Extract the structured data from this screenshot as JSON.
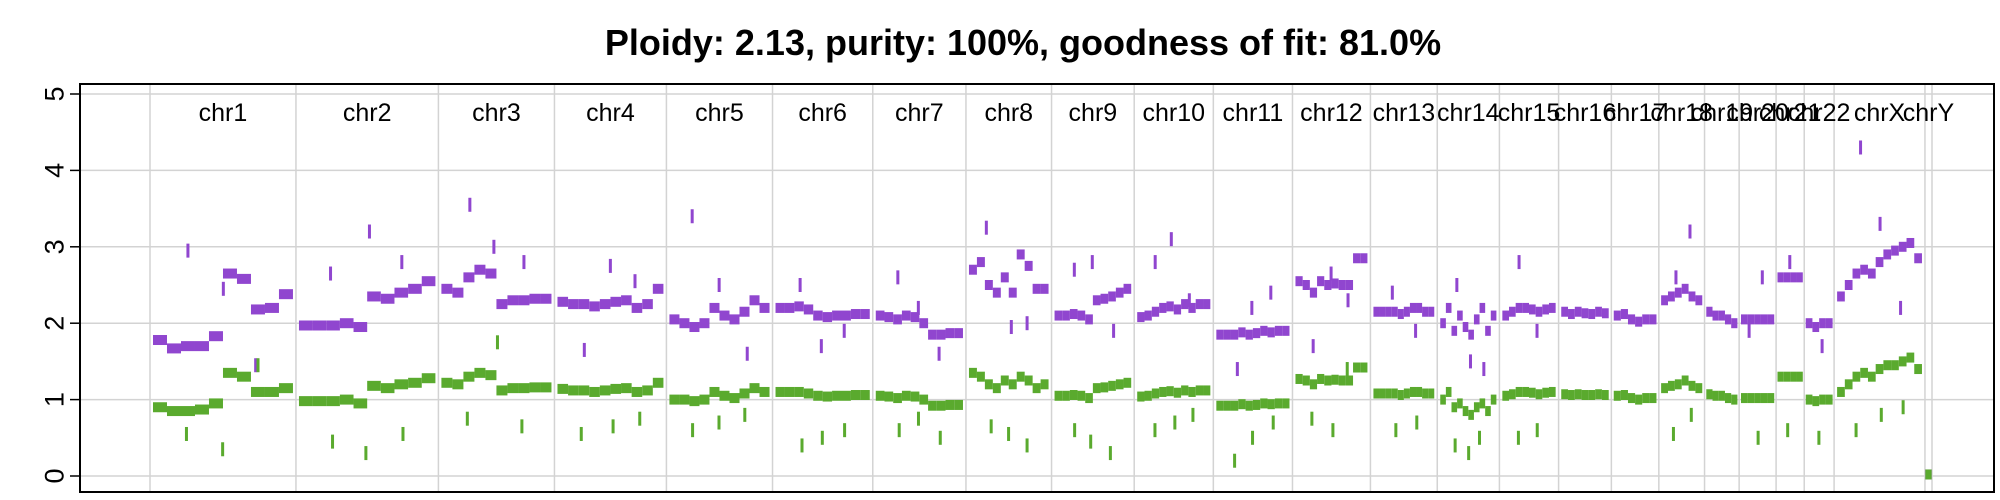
{
  "chart_data": {
    "type": "scatter",
    "title": "Ploidy: 2.13, purity: 100%, goodness of fit: 81.0%",
    "ylim": [
      0,
      5
    ],
    "yticks": [
      "0",
      "1",
      "2",
      "3",
      "4",
      "5"
    ],
    "grid": true,
    "colors": {
      "total": "#9046cf",
      "minor": "#5aaa2e"
    },
    "chromosomes": [
      {
        "name": "chr1",
        "length": 249,
        "total": [
          1.78,
          1.67,
          1.7,
          1.7,
          1.83,
          2.65,
          2.58,
          2.18,
          2.2,
          2.38
        ],
        "minor": [
          0.9,
          0.85,
          0.85,
          0.87,
          0.95,
          1.35,
          1.3,
          1.1,
          1.1,
          1.15
        ],
        "total_out": [
          2.95,
          2.45,
          1.45
        ],
        "minor_out": [
          0.55,
          0.35,
          1.45
        ]
      },
      {
        "name": "chr2",
        "length": 243,
        "total": [
          1.97,
          1.97,
          1.97,
          2.0,
          1.95,
          2.35,
          2.32,
          2.4,
          2.45,
          2.55
        ],
        "minor": [
          0.98,
          0.98,
          0.98,
          1.0,
          0.95,
          1.18,
          1.15,
          1.2,
          1.22,
          1.28
        ],
        "total_out": [
          2.65,
          3.2,
          2.8
        ],
        "minor_out": [
          0.45,
          0.3,
          0.55
        ]
      },
      {
        "name": "chr3",
        "length": 198,
        "total": [
          2.45,
          2.4,
          2.6,
          2.7,
          2.65,
          2.25,
          2.3,
          2.3,
          2.32,
          2.32
        ],
        "minor": [
          1.22,
          1.2,
          1.3,
          1.35,
          1.32,
          1.12,
          1.15,
          1.15,
          1.16,
          1.16
        ],
        "total_out": [
          3.55,
          3.0,
          2.8
        ],
        "minor_out": [
          0.75,
          1.75,
          0.65
        ]
      },
      {
        "name": "chr4",
        "length": 191,
        "total": [
          2.28,
          2.25,
          2.25,
          2.22,
          2.25,
          2.28,
          2.3,
          2.2,
          2.25,
          2.45
        ],
        "minor": [
          1.14,
          1.12,
          1.12,
          1.1,
          1.12,
          1.14,
          1.15,
          1.1,
          1.12,
          1.22
        ],
        "total_out": [
          1.65,
          2.75,
          2.55
        ],
        "minor_out": [
          0.55,
          0.65,
          0.75
        ]
      },
      {
        "name": "chr5",
        "length": 181,
        "total": [
          2.05,
          2.0,
          1.95,
          2.0,
          2.2,
          2.1,
          2.05,
          2.15,
          2.3,
          2.2
        ],
        "minor": [
          1.0,
          1.0,
          0.98,
          1.0,
          1.1,
          1.05,
          1.02,
          1.08,
          1.15,
          1.1
        ],
        "total_out": [
          3.4,
          2.5,
          1.6
        ],
        "minor_out": [
          0.6,
          0.7,
          0.8
        ]
      },
      {
        "name": "chr6",
        "length": 171,
        "total": [
          2.2,
          2.2,
          2.22,
          2.18,
          2.1,
          2.08,
          2.1,
          2.1,
          2.12,
          2.12
        ],
        "minor": [
          1.1,
          1.1,
          1.1,
          1.08,
          1.05,
          1.04,
          1.05,
          1.05,
          1.06,
          1.06
        ],
        "total_out": [
          2.5,
          1.7,
          1.9
        ],
        "minor_out": [
          0.4,
          0.5,
          0.6
        ]
      },
      {
        "name": "chr7",
        "length": 159,
        "total": [
          2.1,
          2.08,
          2.05,
          2.1,
          2.08,
          2.0,
          1.85,
          1.85,
          1.87,
          1.87
        ],
        "minor": [
          1.05,
          1.04,
          1.02,
          1.05,
          1.04,
          1.0,
          0.92,
          0.92,
          0.93,
          0.93
        ],
        "total_out": [
          2.6,
          2.2,
          1.6
        ],
        "minor_out": [
          0.6,
          0.75,
          0.5
        ]
      },
      {
        "name": "chr8",
        "length": 146,
        "total": [
          2.7,
          2.8,
          2.5,
          2.4,
          2.6,
          2.4,
          2.9,
          2.75,
          2.45,
          2.45
        ],
        "minor": [
          1.35,
          1.3,
          1.2,
          1.15,
          1.25,
          1.2,
          1.3,
          1.25,
          1.15,
          1.2
        ],
        "total_out": [
          3.25,
          1.95,
          2.0
        ],
        "minor_out": [
          0.65,
          0.55,
          0.4
        ]
      },
      {
        "name": "chr9",
        "length": 141,
        "total": [
          2.1,
          2.1,
          2.12,
          2.1,
          2.05,
          2.3,
          2.32,
          2.35,
          2.4,
          2.45
        ],
        "minor": [
          1.05,
          1.05,
          1.06,
          1.05,
          1.02,
          1.15,
          1.16,
          1.18,
          1.2,
          1.22
        ],
        "total_out": [
          2.7,
          2.8,
          1.9
        ],
        "minor_out": [
          0.6,
          0.45,
          0.3
        ]
      },
      {
        "name": "chr10",
        "length": 135,
        "total": [
          2.08,
          2.1,
          2.15,
          2.2,
          2.22,
          2.18,
          2.25,
          2.2,
          2.25,
          2.25
        ],
        "minor": [
          1.04,
          1.05,
          1.08,
          1.1,
          1.11,
          1.09,
          1.12,
          1.1,
          1.12,
          1.12
        ],
        "total_out": [
          2.8,
          3.1,
          2.3
        ],
        "minor_out": [
          0.6,
          0.7,
          0.8
        ]
      },
      {
        "name": "chr11",
        "length": 135,
        "total": [
          1.85,
          1.85,
          1.85,
          1.88,
          1.85,
          1.87,
          1.9,
          1.88,
          1.9,
          1.9
        ],
        "minor": [
          0.92,
          0.92,
          0.92,
          0.94,
          0.92,
          0.93,
          0.95,
          0.94,
          0.95,
          0.95
        ],
        "total_out": [
          1.4,
          2.2,
          2.4
        ],
        "minor_out": [
          0.2,
          0.5,
          0.7
        ]
      },
      {
        "name": "chr12",
        "length": 133,
        "total": [
          2.55,
          2.5,
          2.4,
          2.55,
          2.5,
          2.52,
          2.5,
          2.5,
          2.85,
          2.85
        ],
        "minor": [
          1.27,
          1.25,
          1.2,
          1.27,
          1.25,
          1.26,
          1.25,
          1.25,
          1.42,
          1.42
        ],
        "total_out": [
          1.7,
          2.65,
          2.3
        ],
        "minor_out": [
          0.75,
          0.6,
          1.4
        ]
      },
      {
        "name": "chr13",
        "length": 114,
        "total": [
          2.15,
          2.15,
          2.15,
          2.15,
          2.12,
          2.15,
          2.2,
          2.2,
          2.15,
          2.15
        ],
        "minor": [
          1.08,
          1.08,
          1.08,
          1.08,
          1.06,
          1.08,
          1.1,
          1.1,
          1.08,
          1.08
        ],
        "total_out": [
          2.4,
          1.9
        ],
        "minor_out": [
          0.6,
          0.7
        ]
      },
      {
        "name": "chr14",
        "length": 106,
        "total": [
          2.0,
          2.2,
          1.9,
          2.1,
          1.95,
          1.85,
          2.05,
          2.2,
          1.9,
          2.1
        ],
        "minor": [
          1.0,
          1.1,
          0.9,
          0.95,
          0.85,
          0.8,
          0.9,
          0.95,
          0.85,
          1.0
        ],
        "total_out": [
          2.5,
          1.5,
          1.4
        ],
        "minor_out": [
          0.4,
          0.3,
          0.5
        ]
      },
      {
        "name": "chr15",
        "length": 101,
        "total": [
          2.1,
          2.15,
          2.2,
          2.2,
          2.18,
          2.15,
          2.18,
          2.2
        ],
        "minor": [
          1.05,
          1.07,
          1.1,
          1.1,
          1.09,
          1.07,
          1.09,
          1.1
        ],
        "total_out": [
          2.8,
          1.9
        ],
        "minor_out": [
          0.5,
          0.6
        ]
      },
      {
        "name": "chr16",
        "length": 90,
        "total": [
          2.15,
          2.12,
          2.15,
          2.13,
          2.12,
          2.15,
          2.13
        ],
        "minor": [
          1.07,
          1.06,
          1.07,
          1.06,
          1.06,
          1.07,
          1.06
        ],
        "total_out": [],
        "minor_out": []
      },
      {
        "name": "chr17",
        "length": 81,
        "total": [
          2.1,
          2.12,
          2.05,
          2.02,
          2.05,
          2.05
        ],
        "minor": [
          1.05,
          1.06,
          1.02,
          1.0,
          1.02,
          1.02
        ],
        "total_out": [],
        "minor_out": []
      },
      {
        "name": "chr18",
        "length": 78,
        "total": [
          2.3,
          2.35,
          2.4,
          2.45,
          2.35,
          2.3
        ],
        "minor": [
          1.15,
          1.18,
          1.2,
          1.25,
          1.18,
          1.15
        ],
        "total_out": [
          2.6,
          3.2
        ],
        "minor_out": [
          0.55,
          0.8
        ]
      },
      {
        "name": "chr19",
        "length": 59,
        "total": [
          2.15,
          2.1,
          2.1,
          2.05,
          2.0
        ],
        "minor": [
          1.07,
          1.05,
          1.05,
          1.02,
          1.0
        ],
        "total_out": [],
        "minor_out": []
      },
      {
        "name": "chr20",
        "length": 63,
        "total": [
          2.05,
          2.05,
          2.05,
          2.05,
          2.05
        ],
        "minor": [
          1.02,
          1.02,
          1.02,
          1.02,
          1.02
        ],
        "total_out": [
          1.9,
          2.6
        ],
        "minor_out": [
          0.5
        ]
      },
      {
        "name": "chr21",
        "length": 48,
        "total": [
          2.6,
          2.6,
          2.6,
          2.6
        ],
        "minor": [
          1.3,
          1.3,
          1.3,
          1.3
        ],
        "total_out": [
          2.8
        ],
        "minor_out": [
          0.6
        ]
      },
      {
        "name": "chr22",
        "length": 51,
        "total": [
          2.0,
          1.95,
          2.0,
          2.0
        ],
        "minor": [
          1.0,
          0.98,
          1.0,
          1.0
        ],
        "total_out": [
          1.7
        ],
        "minor_out": [
          0.5
        ]
      },
      {
        "name": "chrX",
        "length": 155,
        "total": [
          2.35,
          2.5,
          2.65,
          2.7,
          2.65,
          2.8,
          2.9,
          2.95,
          3.0,
          3.05,
          2.85
        ],
        "minor": [
          1.1,
          1.2,
          1.3,
          1.35,
          1.3,
          1.4,
          1.45,
          1.45,
          1.5,
          1.55,
          1.4
        ],
        "total_out": [
          4.3,
          3.3,
          2.2
        ],
        "minor_out": [
          0.6,
          0.8,
          0.9
        ]
      },
      {
        "name": "chrY",
        "length": 12,
        "total": [
          0.02
        ],
        "minor": [
          0.02
        ],
        "total_out": [],
        "minor_out": []
      }
    ]
  }
}
